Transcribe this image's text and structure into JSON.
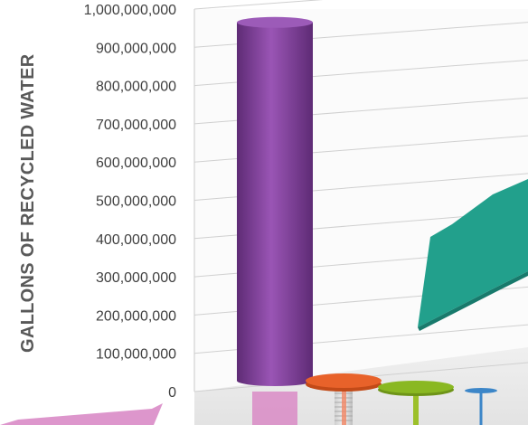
{
  "chart_data": {
    "type": "bar",
    "style": "3d-cylinder",
    "ylabel": "GALLONS OF RECYCLED WATER",
    "ylim": [
      0,
      1000000000
    ],
    "yticks": [
      "0",
      "100,000,000",
      "200,000,000",
      "300,000,000",
      "400,000,000",
      "500,000,000",
      "600,000,000",
      "700,000,000",
      "800,000,000",
      "900,000,000",
      "1,000,000,000"
    ],
    "grid": true,
    "series": [
      {
        "values": [
          965000000,
          20000000,
          8000000,
          3000000
        ]
      }
    ],
    "colors": [
      "#7b3a96",
      "#e8622a",
      "#8ab822",
      "#3c86c8"
    ],
    "accent_colors": {
      "arrow": "#22a08c",
      "callout": "#d98bc6"
    }
  }
}
